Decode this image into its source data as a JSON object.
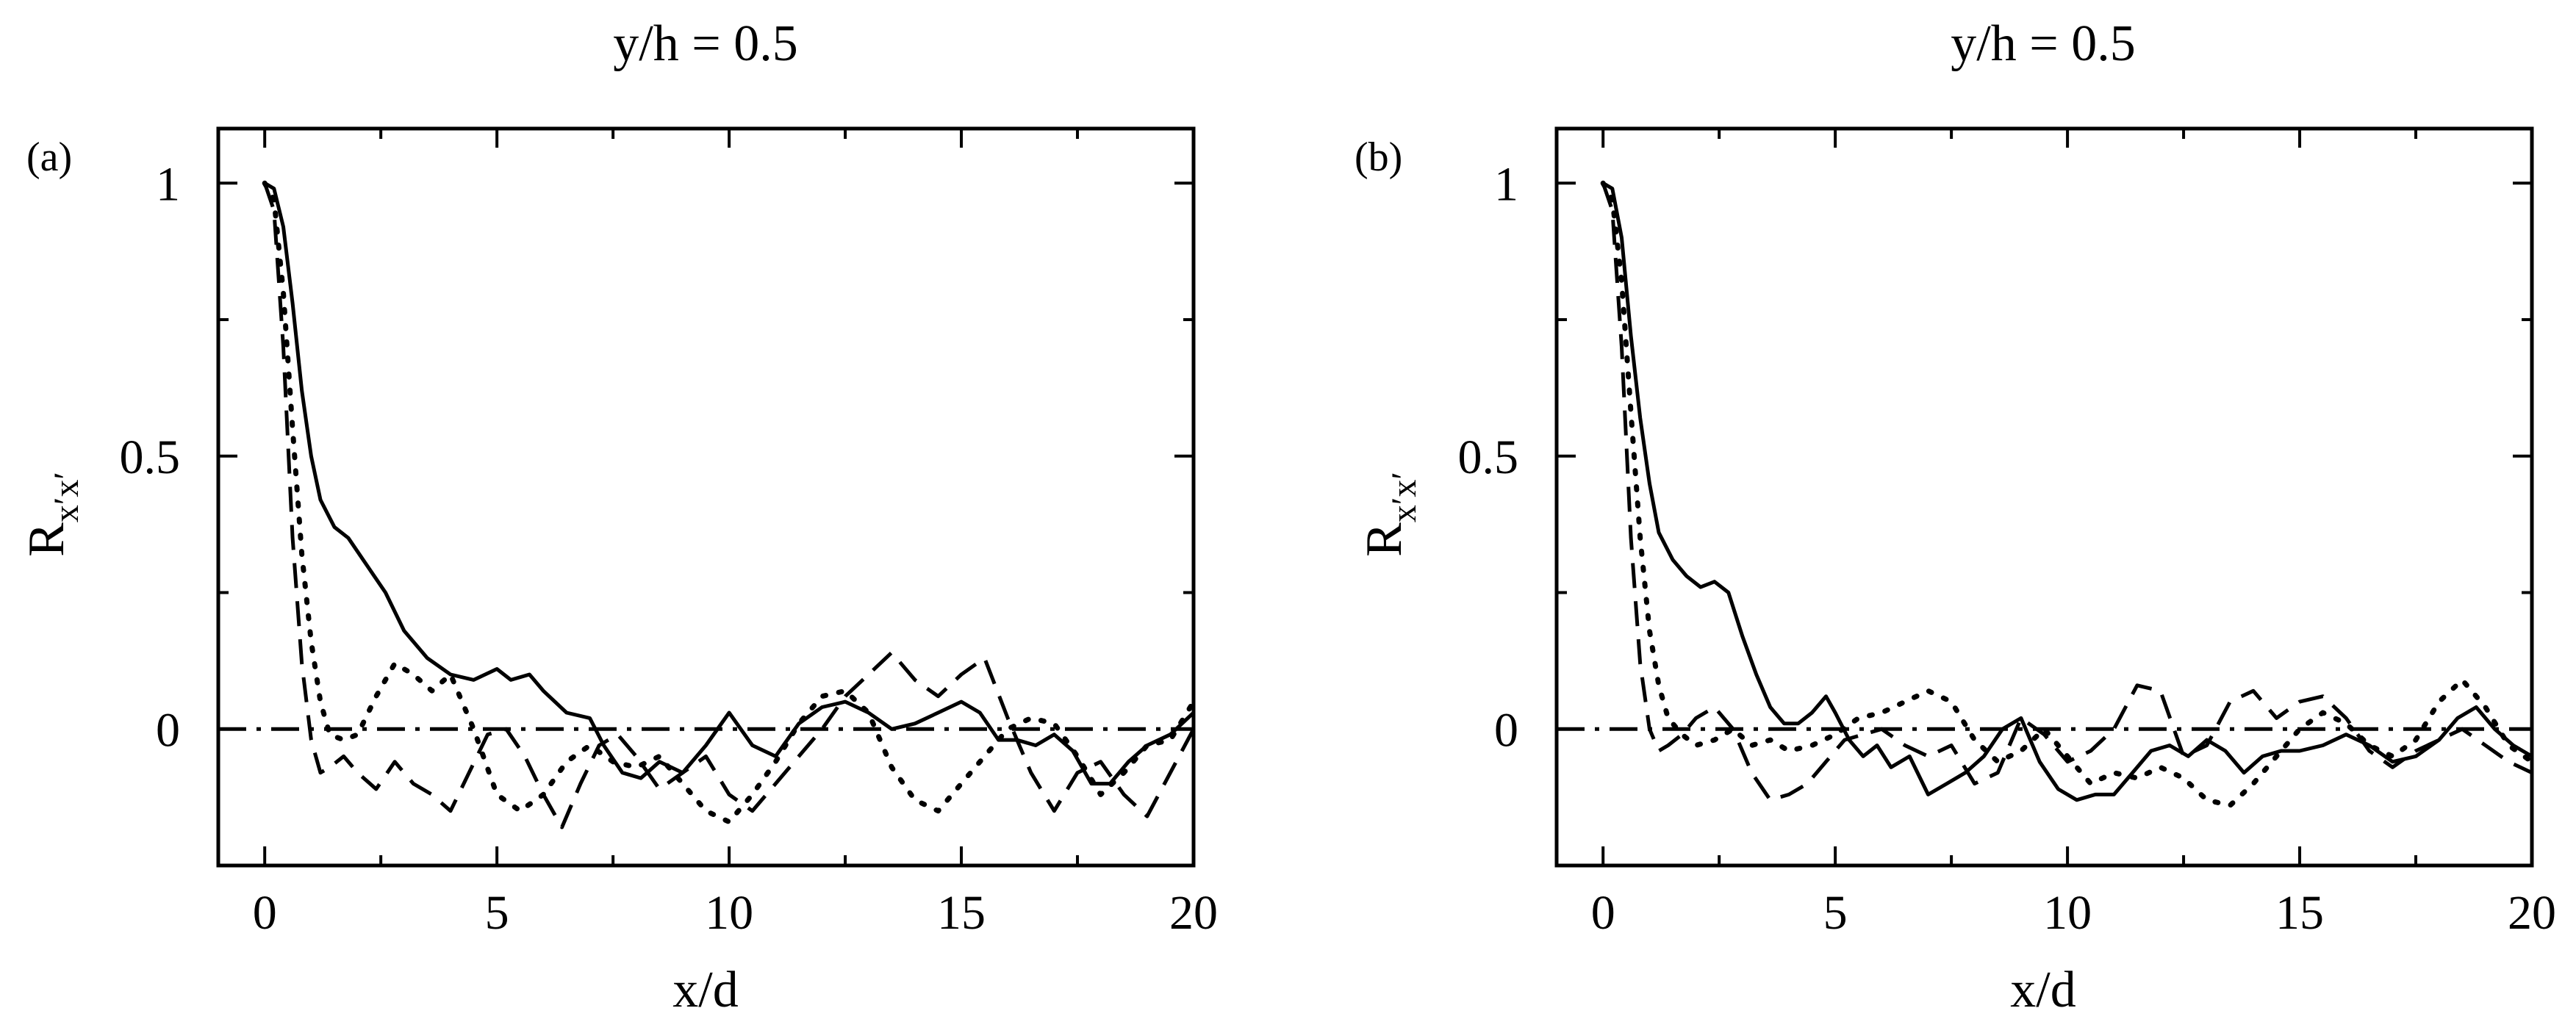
{
  "chart_data": [
    {
      "type": "line",
      "panel_label": "(a)",
      "title": "y/h = 0.5",
      "xlabel": "x/d",
      "ylabel": {
        "base": "R",
        "subscript": "x′x′"
      },
      "xlim": [
        -1,
        20
      ],
      "ylim": [
        -0.25,
        1.1
      ],
      "xticks": [
        "0",
        "5",
        "10",
        "15",
        "20"
      ],
      "yticks": [
        "0",
        "0.5",
        "1"
      ],
      "grid": false,
      "legend": "none",
      "series": [
        {
          "style": "solid",
          "x": [
            0,
            0.2,
            0.4,
            0.6,
            0.8,
            1.0,
            1.2,
            1.5,
            1.8,
            2.2,
            2.6,
            3.0,
            3.5,
            4.0,
            4.5,
            5.0,
            5.3,
            5.7,
            6.0,
            6.5,
            7.0,
            7.3,
            7.7,
            8.1,
            8.5,
            9.0,
            9.5,
            10.0,
            10.5,
            11.0,
            11.5,
            12.0,
            12.5,
            13.0,
            13.5,
            14.0,
            14.5,
            15.0,
            15.4,
            15.8,
            16.2,
            16.6,
            17.0,
            17.4,
            17.8,
            18.2,
            18.6,
            19.0,
            19.5,
            20.0
          ],
          "y": [
            1.0,
            0.99,
            0.92,
            0.78,
            0.62,
            0.5,
            0.42,
            0.37,
            0.35,
            0.3,
            0.25,
            0.18,
            0.13,
            0.1,
            0.09,
            0.11,
            0.09,
            0.1,
            0.07,
            0.03,
            0.02,
            -0.03,
            -0.08,
            -0.09,
            -0.06,
            -0.08,
            -0.03,
            0.03,
            -0.03,
            -0.05,
            0.01,
            0.04,
            0.05,
            0.03,
            0.0,
            0.01,
            0.03,
            0.05,
            0.03,
            -0.02,
            -0.02,
            -0.03,
            -0.01,
            -0.04,
            -0.1,
            -0.1,
            -0.06,
            -0.03,
            -0.01,
            0.03
          ]
        },
        {
          "style": "dashed",
          "x": [
            0,
            0.2,
            0.4,
            0.6,
            0.8,
            1.0,
            1.2,
            1.4,
            1.7,
            2.0,
            2.4,
            2.8,
            3.2,
            3.6,
            4.0,
            4.4,
            4.8,
            5.2,
            5.6,
            6.0,
            6.4,
            6.8,
            7.2,
            7.6,
            8.0,
            8.5,
            9.0,
            9.5,
            10.0,
            10.5,
            11.0,
            11.5,
            12.0,
            12.5,
            13.0,
            13.5,
            14.0,
            14.5,
            15.0,
            15.5,
            16.0,
            16.5,
            17.0,
            17.5,
            18.0,
            18.5,
            19.0,
            19.5,
            20.0
          ],
          "y": [
            1.0,
            0.95,
            0.7,
            0.35,
            0.12,
            -0.02,
            -0.08,
            -0.07,
            -0.05,
            -0.08,
            -0.11,
            -0.06,
            -0.1,
            -0.12,
            -0.15,
            -0.08,
            -0.01,
            0.0,
            -0.05,
            -0.12,
            -0.18,
            -0.1,
            -0.03,
            -0.01,
            -0.05,
            -0.11,
            -0.08,
            -0.05,
            -0.12,
            -0.15,
            -0.1,
            -0.05,
            0.0,
            0.06,
            0.1,
            0.14,
            0.09,
            0.06,
            0.1,
            0.13,
            0.02,
            -0.08,
            -0.15,
            -0.08,
            -0.06,
            -0.12,
            -0.16,
            -0.08,
            0.0
          ]
        },
        {
          "style": "dotted",
          "x": [
            0,
            0.2,
            0.4,
            0.6,
            0.8,
            1.0,
            1.2,
            1.4,
            1.7,
            2.0,
            2.4,
            2.8,
            3.2,
            3.6,
            4.0,
            4.5,
            5.0,
            5.5,
            6.0,
            6.5,
            7.0,
            7.5,
            8.0,
            8.5,
            9.0,
            9.5,
            10.0,
            10.5,
            11.0,
            11.5,
            12.0,
            12.5,
            13.0,
            13.5,
            14.0,
            14.5,
            15.0,
            15.5,
            16.0,
            16.5,
            17.0,
            17.5,
            18.0,
            18.5,
            19.0,
            19.5,
            20.0
          ],
          "y": [
            1.0,
            0.97,
            0.8,
            0.55,
            0.32,
            0.16,
            0.05,
            -0.01,
            -0.02,
            -0.01,
            0.06,
            0.12,
            0.1,
            0.07,
            0.1,
            0.0,
            -0.12,
            -0.15,
            -0.12,
            -0.06,
            -0.03,
            -0.06,
            -0.07,
            -0.05,
            -0.1,
            -0.15,
            -0.17,
            -0.12,
            -0.06,
            0.01,
            0.06,
            0.07,
            0.03,
            -0.07,
            -0.13,
            -0.15,
            -0.1,
            -0.05,
            0.0,
            0.02,
            0.01,
            -0.05,
            -0.12,
            -0.08,
            -0.03,
            -0.02,
            0.05
          ]
        },
        {
          "style": "dash-dot",
          "x": [
            -1,
            20
          ],
          "y": [
            0,
            0
          ]
        }
      ]
    },
    {
      "type": "line",
      "panel_label": "(b)",
      "title": "y/h = 0.5",
      "xlabel": "x/d",
      "ylabel": {
        "base": "R",
        "subscript": "x′x′"
      },
      "xlim": [
        -1,
        20
      ],
      "ylim": [
        -0.25,
        1.1
      ],
      "xticks": [
        "0",
        "5",
        "10",
        "15",
        "20"
      ],
      "yticks": [
        "0",
        "0.5",
        "1"
      ],
      "grid": false,
      "legend": "none",
      "series": [
        {
          "style": "solid",
          "x": [
            0,
            0.2,
            0.4,
            0.6,
            0.8,
            1.0,
            1.2,
            1.5,
            1.8,
            2.1,
            2.4,
            2.7,
            3.0,
            3.3,
            3.6,
            3.9,
            4.2,
            4.5,
            4.8,
            5.0,
            5.3,
            5.6,
            5.9,
            6.2,
            6.6,
            7.0,
            7.4,
            7.8,
            8.2,
            8.6,
            9.0,
            9.4,
            9.8,
            10.2,
            10.6,
            11.0,
            11.4,
            11.8,
            12.2,
            12.6,
            13.0,
            13.4,
            13.8,
            14.2,
            14.6,
            15.0,
            15.5,
            16.0,
            16.5,
            17.0,
            17.5,
            18.0,
            18.4,
            18.8,
            19.2,
            19.6,
            20.0
          ],
          "y": [
            1.0,
            0.99,
            0.9,
            0.72,
            0.57,
            0.45,
            0.36,
            0.31,
            0.28,
            0.26,
            0.27,
            0.25,
            0.17,
            0.1,
            0.04,
            0.01,
            0.01,
            0.03,
            0.06,
            0.03,
            -0.02,
            -0.05,
            -0.03,
            -0.07,
            -0.05,
            -0.12,
            -0.1,
            -0.08,
            -0.05,
            0.0,
            0.02,
            -0.06,
            -0.11,
            -0.13,
            -0.12,
            -0.12,
            -0.08,
            -0.04,
            -0.03,
            -0.05,
            -0.02,
            -0.04,
            -0.08,
            -0.05,
            -0.04,
            -0.04,
            -0.03,
            -0.01,
            -0.03,
            -0.06,
            -0.05,
            -0.02,
            0.02,
            0.04,
            0.0,
            -0.03,
            -0.05
          ]
        },
        {
          "style": "dashed",
          "x": [
            0,
            0.2,
            0.4,
            0.6,
            0.8,
            1.0,
            1.2,
            1.4,
            1.7,
            2.0,
            2.4,
            2.8,
            3.2,
            3.6,
            4.0,
            4.4,
            4.8,
            5.2,
            5.6,
            6.0,
            6.5,
            7.0,
            7.5,
            8.0,
            8.5,
            9.0,
            9.5,
            10.0,
            10.5,
            11.0,
            11.5,
            12.0,
            12.5,
            13.0,
            13.5,
            14.0,
            14.5,
            15.0,
            15.5,
            16.0,
            16.5,
            17.0,
            17.5,
            18.0,
            18.5,
            19.0,
            19.5,
            20.0
          ],
          "y": [
            1.0,
            0.95,
            0.7,
            0.35,
            0.12,
            0.0,
            -0.04,
            -0.03,
            -0.01,
            0.02,
            0.04,
            0.0,
            -0.08,
            -0.13,
            -0.12,
            -0.1,
            -0.06,
            -0.02,
            -0.01,
            0.0,
            -0.03,
            -0.05,
            -0.03,
            -0.1,
            -0.08,
            0.02,
            -0.01,
            -0.06,
            -0.04,
            0.0,
            0.08,
            0.07,
            -0.05,
            -0.03,
            0.05,
            0.07,
            0.02,
            0.05,
            0.06,
            0.02,
            -0.04,
            -0.07,
            -0.04,
            -0.02,
            0.0,
            -0.03,
            -0.06,
            -0.08
          ]
        },
        {
          "style": "dotted",
          "x": [
            0,
            0.2,
            0.4,
            0.6,
            0.8,
            1.0,
            1.2,
            1.4,
            1.7,
            2.0,
            2.4,
            2.8,
            3.2,
            3.6,
            4.0,
            4.5,
            5.0,
            5.5,
            6.0,
            6.5,
            7.0,
            7.5,
            8.0,
            8.5,
            9.0,
            9.5,
            10.0,
            10.5,
            11.0,
            11.5,
            12.0,
            12.5,
            13.0,
            13.5,
            14.0,
            14.5,
            15.0,
            15.5,
            16.0,
            16.5,
            17.0,
            17.5,
            18.0,
            18.5,
            19.0,
            19.5,
            20.0
          ],
          "y": [
            1.0,
            0.97,
            0.82,
            0.58,
            0.35,
            0.18,
            0.08,
            0.02,
            -0.01,
            -0.03,
            -0.02,
            0.0,
            -0.03,
            -0.02,
            -0.04,
            -0.03,
            -0.01,
            0.02,
            0.03,
            0.05,
            0.07,
            0.05,
            -0.02,
            -0.06,
            -0.04,
            0.0,
            -0.05,
            -0.1,
            -0.08,
            -0.09,
            -0.07,
            -0.09,
            -0.13,
            -0.14,
            -0.1,
            -0.05,
            0.0,
            0.03,
            0.01,
            -0.03,
            -0.05,
            -0.02,
            0.05,
            0.09,
            0.04,
            -0.03,
            -0.06
          ]
        },
        {
          "style": "dash-dot",
          "x": [
            -1,
            20
          ],
          "y": [
            0,
            0
          ]
        }
      ]
    }
  ]
}
